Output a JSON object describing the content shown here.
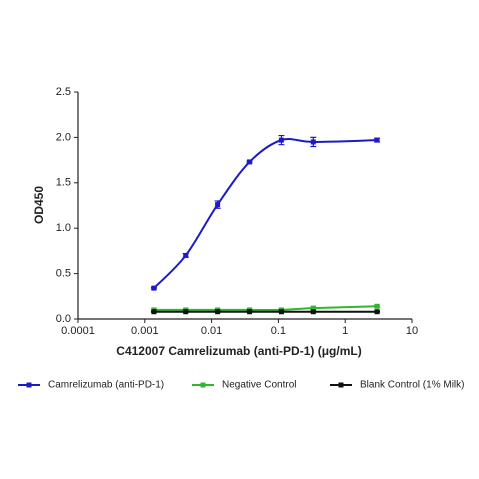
{
  "chart_data": {
    "type": "line",
    "xlabel": "C412007 Camrelizumab (anti-PD-1) (μg/mL)",
    "ylabel": "OD450",
    "x": [
      0.00137,
      0.0041,
      0.0123,
      0.037,
      0.111,
      0.333,
      3
    ],
    "xscale": "log",
    "xlim": [
      0.0001,
      10
    ],
    "xticks": [
      0.0001,
      0.001,
      0.01,
      0.1,
      1,
      10
    ],
    "ylim": [
      0,
      2.5
    ],
    "yticks": [
      {
        "value": 0,
        "label": "0.0"
      },
      {
        "value": 0.5,
        "label": "0.5"
      },
      {
        "value": 1,
        "label": "1.0"
      },
      {
        "value": 1.5,
        "label": "1.5"
      },
      {
        "value": 2,
        "label": "2.0"
      },
      {
        "value": 2.5,
        "label": "2.5"
      }
    ],
    "legend": "bottom",
    "series": [
      {
        "name": "Camrelizumab (anti-PD-1)",
        "color": "#1c1cc4",
        "values": [
          0.34,
          0.7,
          1.26,
          1.73,
          1.97,
          1.95,
          1.97
        ],
        "errors": [
          0.01,
          0.02,
          0.04,
          0.01,
          0.05,
          0.05,
          0.02
        ]
      },
      {
        "name": "Negative Control",
        "color": "#2eb82e",
        "values": [
          0.1,
          0.1,
          0.1,
          0.1,
          0.1,
          0.12,
          0.14
        ],
        "errors": [
          0.01,
          0.01,
          0.01,
          0.01,
          0.01,
          0.01,
          0.01
        ]
      },
      {
        "name": "Blank Control (1% Milk)",
        "color": "#111111",
        "values": [
          0.08,
          0.08,
          0.08,
          0.08,
          0.08,
          0.08,
          0.08
        ],
        "errors": [
          0.005,
          0.005,
          0.005,
          0.005,
          0.005,
          0.005,
          0.005
        ]
      }
    ]
  }
}
